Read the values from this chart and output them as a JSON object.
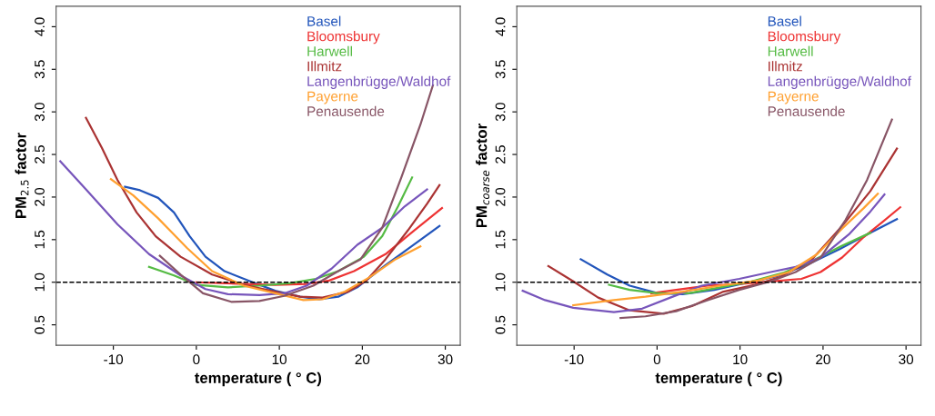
{
  "chart_data": [
    {
      "type": "line",
      "xlabel": "temperature ( ° C)",
      "ylabel": "PM$_{2.5}$ factor",
      "xlim": [
        -16.9,
        31.8
      ],
      "ylim": [
        0.26,
        4.24
      ],
      "xticks": [
        -10,
        0,
        10,
        20,
        30
      ],
      "yticks": [
        {
          "value": 0.5,
          "label": "0.5"
        },
        {
          "value": 1,
          "label": "1.0"
        },
        {
          "value": 1.5,
          "label": "1.5"
        },
        {
          "value": 2,
          "label": "2.0"
        },
        {
          "value": 2.5,
          "label": "2.5"
        },
        {
          "value": 3,
          "label": "3.0"
        },
        {
          "value": 3.5,
          "label": "3.5"
        },
        {
          "value": 4,
          "label": "4.0"
        }
      ],
      "grid": false,
      "legend": "top right",
      "line_style": "solid",
      "marker": "none",
      "ref_lines": [
        {
          "axis": "y",
          "value": 1,
          "label": null,
          "color": "#000000",
          "line_style": "dashed"
        }
      ],
      "series": [
        {
          "name": "Basel",
          "color": "#2255bb",
          "x": [
            -8.6,
            -6.8,
            -4.6,
            -2.7,
            -0.8,
            1.1,
            3.4,
            6.5,
            9.5,
            12.5,
            14.8,
            17.1,
            19.4,
            22.8,
            25.9,
            29.3
          ],
          "values": [
            2.12,
            2.08,
            1.99,
            1.82,
            1.54,
            1.3,
            1.13,
            1.01,
            0.9,
            0.83,
            0.8,
            0.83,
            0.94,
            1.2,
            1.42,
            1.66
          ]
        },
        {
          "name": "Bloomsbury",
          "color": "#ee3333",
          "x": [
            0,
            5.7,
            9.5,
            13.3,
            16,
            19,
            22.8,
            25.9,
            29.6
          ],
          "values": [
            1.0,
            0.98,
            0.97,
            0.98,
            1.02,
            1.13,
            1.33,
            1.58,
            1.87
          ]
        },
        {
          "name": "Harwell",
          "color": "#55bb44",
          "x": [
            -5.7,
            -2.7,
            0,
            3.8,
            7.6,
            11.4,
            14.4,
            17.1,
            20.2,
            22.4,
            24.3,
            26.0
          ],
          "values": [
            1.18,
            1.08,
            0.97,
            0.94,
            0.96,
            0.99,
            1.04,
            1.13,
            1.3,
            1.54,
            1.89,
            2.23
          ]
        },
        {
          "name": "Illmitz",
          "color": "#aa3333",
          "x": [
            -13.3,
            -11.4,
            -9.5,
            -7.2,
            -4.9,
            -1.9,
            1.9,
            5.7,
            9.5,
            12.5,
            15.2,
            18.3,
            20.5,
            22.8,
            25.5,
            27.8,
            29.3
          ],
          "values": [
            2.93,
            2.58,
            2.2,
            1.82,
            1.54,
            1.3,
            1.09,
            0.97,
            0.89,
            0.83,
            0.82,
            0.89,
            1.02,
            1.27,
            1.61,
            1.92,
            2.14
          ]
        },
        {
          "name": "Langenbrügge/Waldhof",
          "color": "#7755bb",
          "x": [
            -16.4,
            -13.3,
            -9.5,
            -5.7,
            -1.9,
            1.1,
            3.8,
            7.6,
            10.6,
            13.3,
            16.3,
            19.4,
            22.4,
            25.1,
            27.8
          ],
          "values": [
            2.42,
            2.09,
            1.68,
            1.33,
            1.08,
            0.92,
            0.86,
            0.85,
            0.87,
            0.96,
            1.16,
            1.44,
            1.64,
            1.89,
            2.09
          ]
        },
        {
          "name": "Payerne",
          "color": "#ffa030",
          "x": [
            -10.3,
            -7.6,
            -4.6,
            -1.1,
            1.9,
            5.7,
            9.5,
            12.9,
            15.2,
            17.9,
            20.9,
            24.0,
            27.0
          ],
          "values": [
            2.21,
            2.02,
            1.75,
            1.4,
            1.13,
            0.96,
            0.87,
            0.79,
            0.8,
            0.89,
            1.06,
            1.27,
            1.42
          ]
        },
        {
          "name": "Penausende",
          "color": "#885566",
          "x": [
            -4.4,
            -1.9,
            0.8,
            4.2,
            7.6,
            10.6,
            14.1,
            17.1,
            19.8,
            22.4,
            24.7,
            27.0,
            28.5
          ],
          "values": [
            1.31,
            1.09,
            0.87,
            0.77,
            0.78,
            0.84,
            0.96,
            1.13,
            1.27,
            1.64,
            2.23,
            2.85,
            3.31
          ]
        }
      ]
    },
    {
      "type": "line",
      "xlabel": "temperature ( ° C)",
      "ylabel": "PM$_{coarse}$ factor",
      "xlim": [
        -16.9,
        31.8
      ],
      "ylim": [
        0.26,
        4.24
      ],
      "xticks": [
        -10,
        0,
        10,
        20,
        30
      ],
      "yticks": [
        {
          "value": 0.5,
          "label": "0.5"
        },
        {
          "value": 1,
          "label": "1.0"
        },
        {
          "value": 1.5,
          "label": "1.5"
        },
        {
          "value": 2,
          "label": "2.0"
        },
        {
          "value": 2.5,
          "label": "2.5"
        },
        {
          "value": 3,
          "label": "3.0"
        },
        {
          "value": 3.5,
          "label": "3.5"
        },
        {
          "value": 4,
          "label": "4.0"
        }
      ],
      "grid": false,
      "legend": "top right",
      "line_style": "solid",
      "marker": "none",
      "ref_lines": [
        {
          "axis": "y",
          "value": 1,
          "label": null,
          "color": "#000000",
          "line_style": "dashed"
        }
      ],
      "series": [
        {
          "name": "Basel",
          "color": "#2255bb",
          "x": [
            -9.2,
            -6.0,
            -3.3,
            0.1,
            3.1,
            6.9,
            10.6,
            14.4,
            18.2,
            22.0,
            25.7,
            28.9
          ],
          "values": [
            1.27,
            1.09,
            0.96,
            0.87,
            0.86,
            0.91,
            0.99,
            1.07,
            1.21,
            1.39,
            1.58,
            1.74
          ]
        },
        {
          "name": "Bloomsbury",
          "color": "#ee3333",
          "x": [
            -0.7,
            2.3,
            6.1,
            9.9,
            13.7,
            17.4,
            19.7,
            22.3,
            24.9,
            27.2,
            29.3
          ],
          "values": [
            0.87,
            0.91,
            0.96,
            0.98,
            1.01,
            1.04,
            1.12,
            1.29,
            1.53,
            1.71,
            1.88
          ]
        },
        {
          "name": "Harwell",
          "color": "#55bb44",
          "x": [
            -5.8,
            -3.3,
            0.1,
            3.8,
            7.6,
            11.4,
            15.2,
            18.9,
            22.3,
            25.7
          ],
          "values": [
            0.97,
            0.91,
            0.87,
            0.87,
            0.94,
            1.01,
            1.11,
            1.26,
            1.43,
            1.58
          ]
        },
        {
          "name": "Illmitz",
          "color": "#aa3333",
          "x": [
            -13.1,
            -10.1,
            -7.1,
            -3.3,
            0.8,
            4.2,
            8.0,
            11.8,
            14.8,
            18.6,
            22.3,
            25.7,
            28.9
          ],
          "values": [
            1.19,
            1.01,
            0.82,
            0.67,
            0.63,
            0.72,
            0.89,
            0.97,
            1.06,
            1.26,
            1.66,
            2.07,
            2.57
          ]
        },
        {
          "name": "Langenbrügge/Waldhof",
          "color": "#7755bb",
          "x": [
            -16.2,
            -13.5,
            -10.1,
            -5.2,
            -1.8,
            1.6,
            5.4,
            9.9,
            13.7,
            16.7,
            19.7,
            23.1,
            25.7,
            27.4
          ],
          "values": [
            0.9,
            0.79,
            0.7,
            0.65,
            0.69,
            0.82,
            0.96,
            1.04,
            1.12,
            1.18,
            1.29,
            1.56,
            1.83,
            2.03
          ]
        },
        {
          "name": "Payerne",
          "color": "#ffa030",
          "x": [
            -10.1,
            -5.2,
            -1.4,
            3.1,
            7.6,
            12.2,
            15.9,
            19.3,
            22.3,
            24.9,
            26.6
          ],
          "values": [
            0.73,
            0.79,
            0.83,
            0.89,
            0.96,
            1.02,
            1.12,
            1.33,
            1.63,
            1.87,
            2.04
          ]
        },
        {
          "name": "Penausende",
          "color": "#885566",
          "x": [
            -4.4,
            -1.4,
            2.3,
            6.1,
            9.9,
            13.7,
            16.7,
            19.7,
            22.7,
            25.3,
            28.3
          ],
          "values": [
            0.58,
            0.6,
            0.66,
            0.79,
            0.91,
            1.01,
            1.12,
            1.29,
            1.73,
            2.2,
            2.91
          ]
        }
      ]
    }
  ]
}
